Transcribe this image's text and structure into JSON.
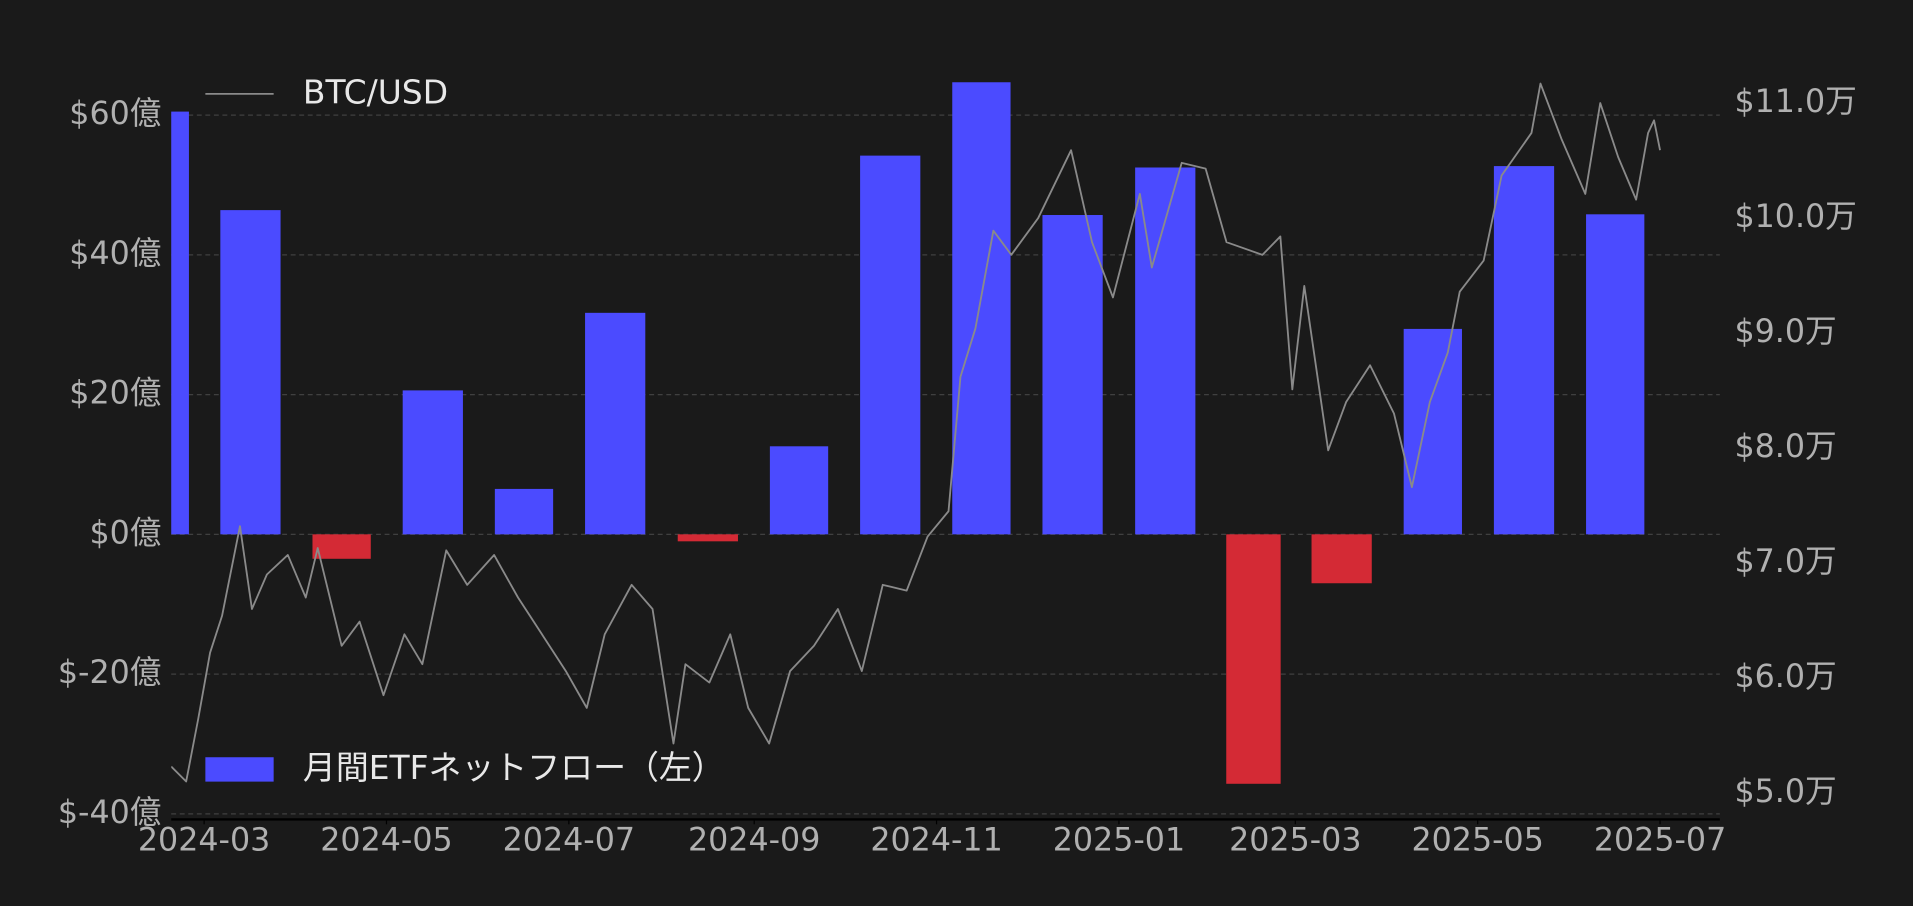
{
  "chart_data": {
    "type": "bar",
    "series": [
      {
        "name": "月間ETFネットフロー（左）",
        "type": "bar",
        "color": "#4b4bff",
        "negative_color": "#d42a35",
        "legend": "lower left",
        "x": [
          "2024-02",
          "2024-03",
          "2024-04",
          "2024-05",
          "2024-06",
          "2024-07",
          "2024-08",
          "2024-09",
          "2024-10",
          "2024-11",
          "2024-12",
          "2025-01",
          "2025-02",
          "2025-03",
          "2025-04",
          "2025-05",
          "2025-06"
        ],
        "values": [
          60.5,
          46.4,
          -3.5,
          20.6,
          6.5,
          31.7,
          -1.0,
          12.6,
          54.2,
          64.7,
          45.7,
          52.5,
          -35.7,
          -7.0,
          29.4,
          52.7,
          45.8
        ]
      },
      {
        "name": "BTC/USD",
        "type": "line",
        "axis": "y2",
        "color": "#8a8a8a",
        "legend": "upper left",
        "x": [
          "2024-02-19",
          "2024-02-24",
          "2024-02-28",
          "2024-03-03",
          "2024-03-07",
          "2024-03-13",
          "2024-03-17",
          "2024-03-22",
          "2024-03-29",
          "2024-04-04",
          "2024-04-08",
          "2024-04-16",
          "2024-04-22",
          "2024-04-30",
          "2024-05-07",
          "2024-05-13",
          "2024-05-21",
          "2024-05-28",
          "2024-06-06",
          "2024-06-14",
          "2024-06-22",
          "2024-06-30",
          "2024-07-07",
          "2024-07-13",
          "2024-07-22",
          "2024-07-29",
          "2024-08-05",
          "2024-08-09",
          "2024-08-17",
          "2024-08-24",
          "2024-08-30",
          "2024-09-06",
          "2024-09-13",
          "2024-09-21",
          "2024-09-29",
          "2024-10-07",
          "2024-10-14",
          "2024-10-22",
          "2024-10-29",
          "2024-11-05",
          "2024-11-09",
          "2024-11-14",
          "2024-11-20",
          "2024-11-26",
          "2024-12-05",
          "2024-12-16",
          "2024-12-23",
          "2024-12-30",
          "2025-01-08",
          "2025-01-12",
          "2025-01-22",
          "2025-01-30",
          "2025-02-06",
          "2025-02-18",
          "2025-02-24",
          "2025-02-28",
          "2025-03-04",
          "2025-03-12",
          "2025-03-18",
          "2025-03-26",
          "2025-04-03",
          "2025-04-09",
          "2025-04-15",
          "2025-04-21",
          "2025-04-25",
          "2025-05-03",
          "2025-05-09",
          "2025-05-19",
          "2025-05-22",
          "2025-05-29",
          "2025-06-06",
          "2025-06-11",
          "2025-06-17",
          "2025-06-23",
          "2025-06-27",
          "2025-06-29",
          "2025-07-01"
        ],
        "values": [
          5.23,
          5.1,
          5.64,
          6.22,
          6.54,
          7.32,
          6.6,
          6.9,
          7.07,
          6.7,
          7.13,
          6.28,
          6.49,
          5.85,
          6.38,
          6.12,
          7.11,
          6.81,
          7.07,
          6.7,
          6.38,
          6.06,
          5.74,
          6.38,
          6.81,
          6.6,
          5.43,
          6.12,
          5.96,
          6.38,
          5.74,
          5.43,
          6.06,
          6.28,
          6.6,
          6.06,
          6.81,
          6.76,
          7.23,
          7.45,
          8.62,
          9.04,
          9.89,
          9.68,
          10.0,
          10.59,
          9.79,
          9.31,
          10.21,
          9.57,
          10.48,
          10.43,
          9.79,
          9.68,
          9.84,
          8.51,
          9.41,
          7.98,
          8.4,
          8.72,
          8.3,
          7.66,
          8.4,
          8.83,
          9.36,
          9.63,
          10.37,
          10.74,
          11.17,
          10.69,
          10.21,
          11.0,
          10.53,
          10.16,
          10.74,
          10.85,
          10.59
        ]
      }
    ],
    "xlim": [
      "2024-02-19",
      "2025-07-21"
    ],
    "xticks": [
      "2024-03",
      "2024-05",
      "2024-07",
      "2024-09",
      "2024-11",
      "2025-01",
      "2025-03",
      "2025-05",
      "2025-07"
    ],
    "ylim": [
      -40.8,
      66
    ],
    "yticks": [
      {
        "value": -40,
        "label": "$-40億"
      },
      {
        "value": -20,
        "label": "$-20億"
      },
      {
        "value": 0,
        "label": "$0億"
      },
      {
        "value": 20,
        "label": "$20億"
      },
      {
        "value": 40,
        "label": "$40億"
      },
      {
        "value": 60,
        "label": "$60億"
      }
    ],
    "y2lim": [
      4.77,
      11.26
    ],
    "y2ticks": [
      {
        "value": 5,
        "label": "$5.0万"
      },
      {
        "value": 6,
        "label": "$6.0万"
      },
      {
        "value": 7,
        "label": "$7.0万"
      },
      {
        "value": 8,
        "label": "$8.0万"
      },
      {
        "value": 9,
        "label": "$9.0万"
      },
      {
        "value": 10,
        "label": "$10.0万"
      },
      {
        "value": 11,
        "label": "$11.0万"
      }
    ],
    "grid": true
  }
}
